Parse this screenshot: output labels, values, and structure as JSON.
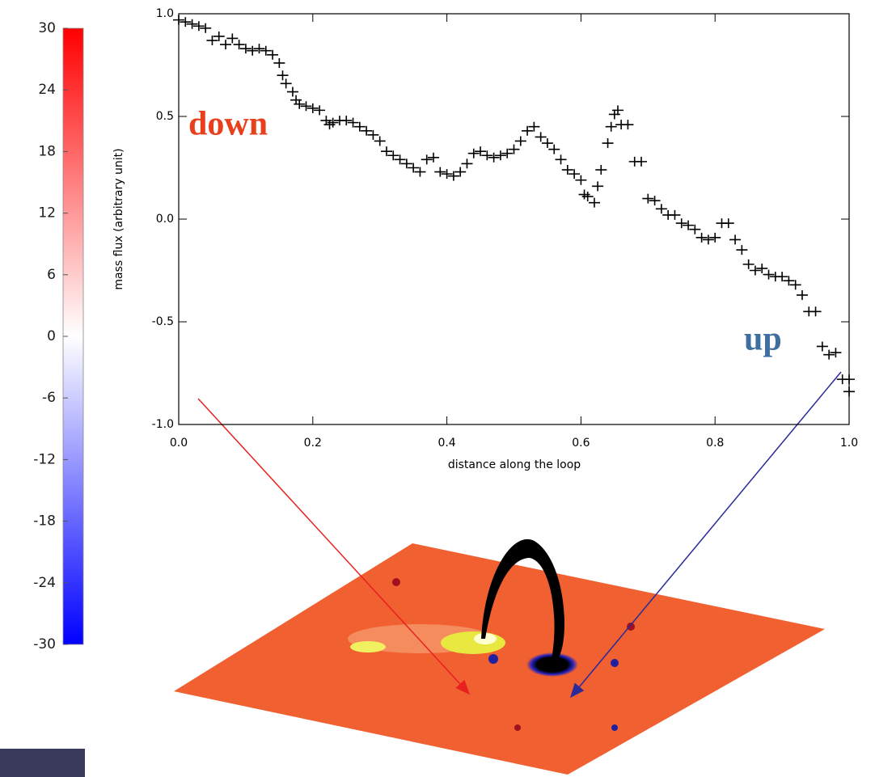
{
  "chart_data": [
    {
      "type": "scatter",
      "xlabel": "distance along the loop",
      "ylabel": "mass flux (arbitrary unit)",
      "xlim": [
        0,
        1
      ],
      "ylim": [
        -1,
        1
      ],
      "xticks": [
        {
          "value": 0,
          "label": "0.0"
        },
        0.2,
        0.4,
        0.6,
        0.8,
        {
          "value": 1,
          "label": "1.0"
        }
      ],
      "yticks": [
        {
          "value": -1,
          "label": "-1.0"
        },
        -0.5,
        {
          "value": 0,
          "label": "0.0"
        },
        0.5,
        {
          "value": 1,
          "label": "1.0"
        }
      ],
      "color": "#000000",
      "annotations": [
        {
          "text": "down",
          "color": "#e8401c"
        },
        {
          "text": "up",
          "color": "#3f6fa0"
        }
      ],
      "x": [
        0,
        0.01,
        0.02,
        0.03,
        0.04,
        0.05,
        0.06,
        0.07,
        0.08,
        0.09,
        0.1,
        0.11,
        0.12,
        0.13,
        0.14,
        0.15,
        0.155,
        0.16,
        0.17,
        0.175,
        0.18,
        0.19,
        0.2,
        0.21,
        0.22,
        0.225,
        0.23,
        0.24,
        0.25,
        0.26,
        0.27,
        0.28,
        0.29,
        0.3,
        0.31,
        0.32,
        0.33,
        0.34,
        0.35,
        0.36,
        0.37,
        0.38,
        0.39,
        0.4,
        0.41,
        0.42,
        0.43,
        0.44,
        0.45,
        0.46,
        0.47,
        0.48,
        0.49,
        0.5,
        0.51,
        0.52,
        0.53,
        0.54,
        0.55,
        0.56,
        0.57,
        0.58,
        0.59,
        0.6,
        0.605,
        0.61,
        0.62,
        0.625,
        0.63,
        0.64,
        0.645,
        0.65,
        0.655,
        0.66,
        0.67,
        0.68,
        0.69,
        0.7,
        0.71,
        0.72,
        0.73,
        0.74,
        0.75,
        0.76,
        0.77,
        0.78,
        0.79,
        0.8,
        0.81,
        0.82,
        0.83,
        0.84,
        0.85,
        0.86,
        0.87,
        0.88,
        0.89,
        0.9,
        0.91,
        0.92,
        0.93,
        0.94,
        0.95,
        0.96,
        0.97,
        0.98,
        0.99,
        1.0,
        1.0
      ],
      "values": [
        0.97,
        0.96,
        0.95,
        0.94,
        0.93,
        0.87,
        0.89,
        0.85,
        0.88,
        0.85,
        0.83,
        0.82,
        0.83,
        0.82,
        0.8,
        0.76,
        0.7,
        0.66,
        0.62,
        0.58,
        0.56,
        0.55,
        0.54,
        0.53,
        0.48,
        0.46,
        0.47,
        0.48,
        0.48,
        0.47,
        0.45,
        0.43,
        0.41,
        0.38,
        0.33,
        0.31,
        0.29,
        0.27,
        0.25,
        0.23,
        0.29,
        0.3,
        0.23,
        0.22,
        0.21,
        0.23,
        0.27,
        0.32,
        0.33,
        0.31,
        0.3,
        0.31,
        0.32,
        0.34,
        0.38,
        0.43,
        0.45,
        0.4,
        0.37,
        0.34,
        0.29,
        0.24,
        0.22,
        0.19,
        0.12,
        0.11,
        0.08,
        0.16,
        0.24,
        0.37,
        0.45,
        0.51,
        0.53,
        0.46,
        0.46,
        0.28,
        0.28,
        0.1,
        0.09,
        0.05,
        0.02,
        0.02,
        -0.02,
        -0.03,
        -0.05,
        -0.09,
        -0.1,
        -0.09,
        -0.02,
        -0.02,
        -0.1,
        -0.15,
        -0.22,
        -0.25,
        -0.24,
        -0.27,
        -0.28,
        -0.28,
        -0.3,
        -0.32,
        -0.37,
        -0.45,
        -0.45,
        -0.62,
        -0.66,
        -0.65,
        -0.78,
        -0.78,
        -0.84
      ]
    },
    {
      "type": "colorbar",
      "ylim": [
        -30,
        30
      ],
      "yticks": [
        30,
        24,
        18,
        12,
        6,
        0,
        -6,
        -12,
        -18,
        -24,
        -30
      ],
      "colors": [
        "#0000ff",
        "#ffffff",
        "#ff0000"
      ]
    }
  ]
}
